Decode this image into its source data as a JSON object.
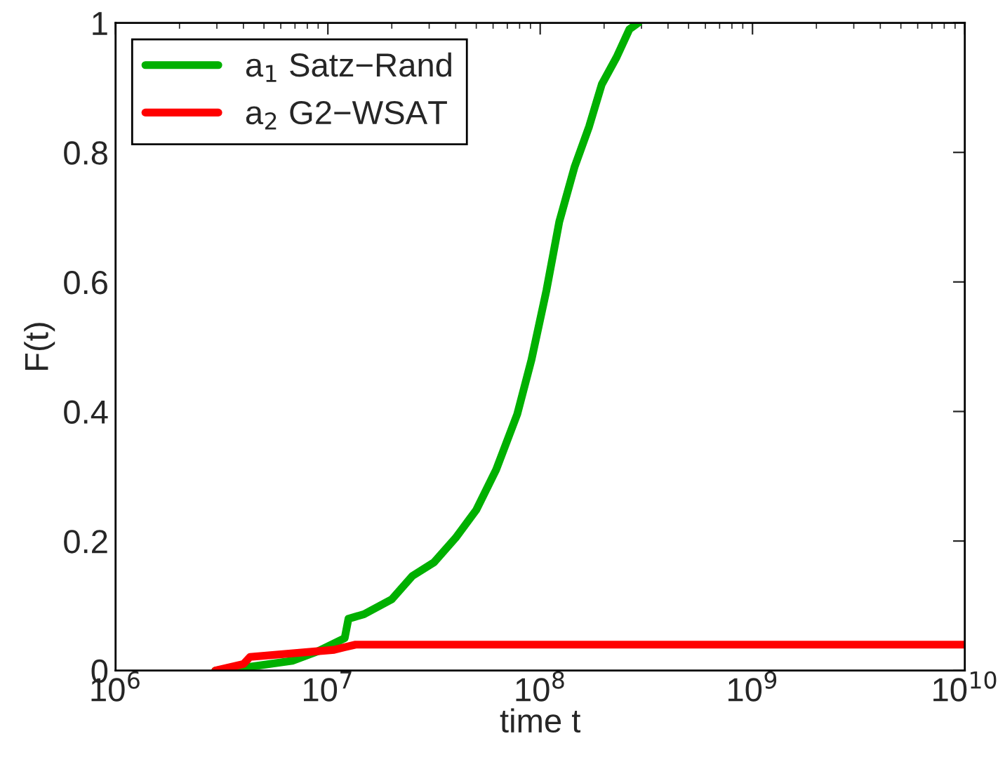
{
  "chart_data": {
    "type": "line",
    "xlabel": "time t",
    "ylabel": "F(t)",
    "log": "x",
    "xlim": [
      1000000,
      10000000000
    ],
    "ylim": [
      0,
      1
    ],
    "xticks": [
      {
        "value": 1000000,
        "label": "10$^{6}$"
      },
      {
        "value": 10000000,
        "label": "10$^{7}$"
      },
      {
        "value": 100000000,
        "label": "10$^{8}$"
      },
      {
        "value": 1000000000,
        "label": "10$^{9}$"
      },
      {
        "value": 10000000000,
        "label": "10$^{10}$"
      }
    ],
    "yticks": [
      0,
      0.2,
      0.4,
      0.6,
      0.8,
      1
    ],
    "grid": false,
    "legend": "top left",
    "line_style": "solid",
    "marker": "none",
    "series": [
      {
        "name": "a$_{1}$ Satz−Rand",
        "color": "#00b000",
        "x": [
          2950000,
          4300000,
          6800000,
          9000000,
          12000000,
          12500000,
          14800000,
          20000000,
          25000000,
          31600000,
          40000000,
          50000000,
          62000000,
          78000000,
          91000000,
          107000000,
          123000000,
          145000000,
          170000000,
          195000000,
          229000000,
          263000000,
          290000000
        ],
        "values": [
          0,
          0.006,
          0.015,
          0.03,
          0.05,
          0.08,
          0.087,
          0.11,
          0.146,
          0.167,
          0.205,
          0.248,
          0.31,
          0.396,
          0.48,
          0.587,
          0.693,
          0.777,
          0.84,
          0.905,
          0.947,
          0.99,
          1.0
        ]
      },
      {
        "name": "a$_{2}$ G2−WSAT",
        "color": "#ff0000",
        "x": [
          2950000,
          4000000,
          4300000,
          10700000,
          12000000,
          13500000,
          10000000000
        ],
        "values": [
          0,
          0.01,
          0.021,
          0.032,
          0.036,
          0.04,
          0.04
        ]
      }
    ]
  }
}
